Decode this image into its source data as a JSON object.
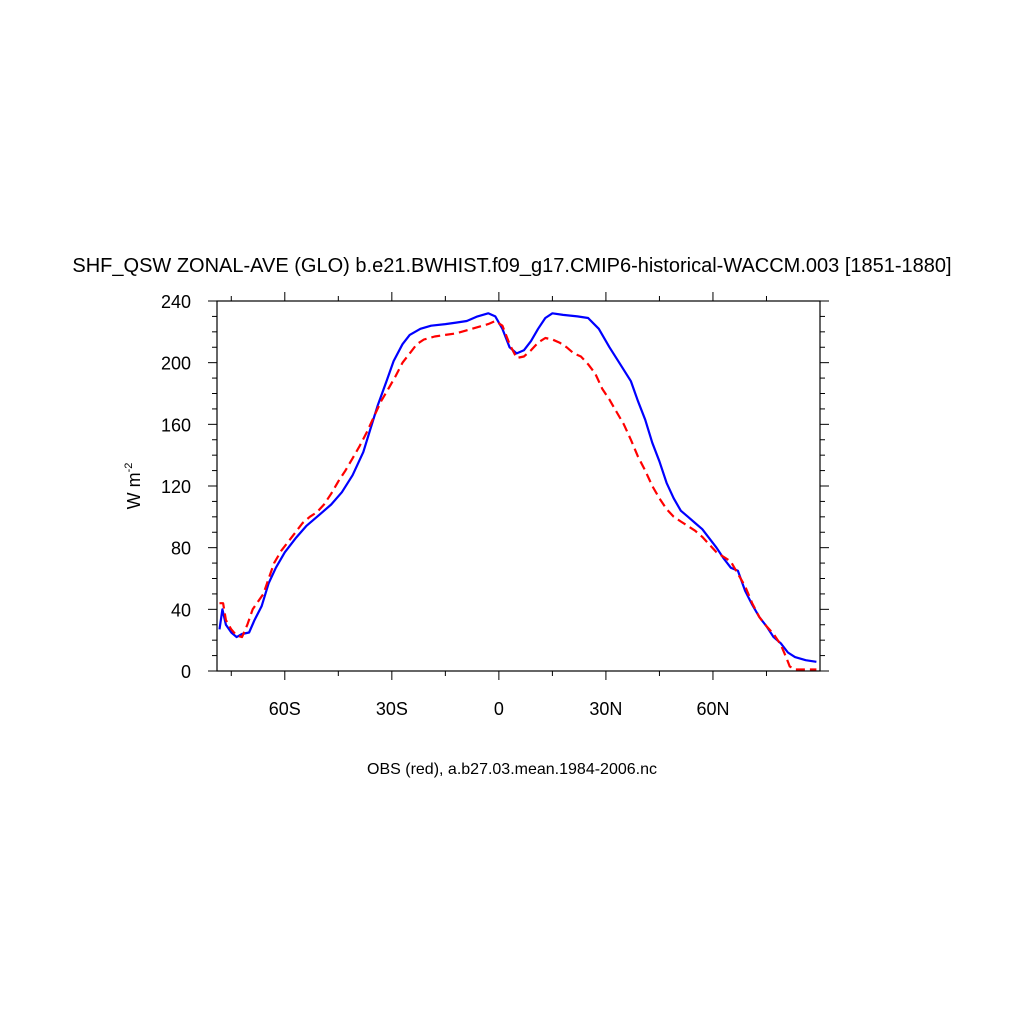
{
  "chart_data": {
    "type": "line",
    "title": "SHF_QSW ZONAL-AVE (GLO) b.e21.BWHIST.f09_g17.CMIP6-historical-WACCM.003 [1851-1880]",
    "ylabel": {
      "base": "W m",
      "exponent": "-2"
    },
    "caption": "OBS (red), a.b27.03.mean.1984-2006.nc",
    "xlim": [
      -79,
      90
    ],
    "ylim": [
      0,
      240
    ],
    "x_ticks": [
      {
        "value": -60,
        "label": "60S"
      },
      {
        "value": -30,
        "label": "30S"
      },
      {
        "value": 0,
        "label": "0"
      },
      {
        "value": 30,
        "label": "30N"
      },
      {
        "value": 60,
        "label": "60N"
      }
    ],
    "y_ticks": [
      {
        "value": 0,
        "label": "0"
      },
      {
        "value": 40,
        "label": "40"
      },
      {
        "value": 80,
        "label": "80"
      },
      {
        "value": 120,
        "label": "120"
      },
      {
        "value": 160,
        "label": "160"
      },
      {
        "value": 200,
        "label": "200"
      },
      {
        "value": 240,
        "label": "240"
      }
    ],
    "series": [
      {
        "color": "#0000ff",
        "dash": "solid",
        "points": [
          [
            -78.3,
            27
          ],
          [
            -77.5,
            40
          ],
          [
            -76.5,
            30
          ],
          [
            -75,
            25
          ],
          [
            -73.5,
            22
          ],
          [
            -72,
            24
          ],
          [
            -70,
            25
          ],
          [
            -68.5,
            33
          ],
          [
            -66.5,
            42
          ],
          [
            -64.5,
            57
          ],
          [
            -62.5,
            67
          ],
          [
            -60,
            77
          ],
          [
            -57,
            86
          ],
          [
            -54,
            94
          ],
          [
            -50,
            102
          ],
          [
            -47,
            108
          ],
          [
            -44,
            116
          ],
          [
            -41,
            127
          ],
          [
            -38,
            142
          ],
          [
            -36,
            157
          ],
          [
            -34,
            172
          ],
          [
            -31.5,
            188
          ],
          [
            -29.5,
            201
          ],
          [
            -27,
            212
          ],
          [
            -25,
            218
          ],
          [
            -22,
            222
          ],
          [
            -19,
            224
          ],
          [
            -15,
            225
          ],
          [
            -12,
            226
          ],
          [
            -9,
            227
          ],
          [
            -6,
            230
          ],
          [
            -3,
            232
          ],
          [
            -1,
            230
          ],
          [
            1,
            222
          ],
          [
            3,
            210
          ],
          [
            5,
            206
          ],
          [
            7,
            208
          ],
          [
            9,
            214
          ],
          [
            11,
            222
          ],
          [
            13,
            229
          ],
          [
            15,
            232
          ],
          [
            18,
            231
          ],
          [
            22,
            230
          ],
          [
            25,
            229
          ],
          [
            28,
            222
          ],
          [
            31,
            210
          ],
          [
            34,
            199
          ],
          [
            37,
            188
          ],
          [
            39,
            175
          ],
          [
            41,
            163
          ],
          [
            43,
            148
          ],
          [
            45,
            136
          ],
          [
            47,
            122
          ],
          [
            49,
            112
          ],
          [
            51,
            104
          ],
          [
            53,
            100
          ],
          [
            55,
            96
          ],
          [
            57,
            92
          ],
          [
            59,
            86
          ],
          [
            61,
            80
          ],
          [
            63,
            73
          ],
          [
            65,
            67
          ],
          [
            67,
            65
          ],
          [
            69,
            52
          ],
          [
            71,
            43
          ],
          [
            73,
            35
          ],
          [
            75,
            29
          ],
          [
            77,
            22
          ],
          [
            79,
            18
          ],
          [
            81,
            12
          ],
          [
            83,
            9
          ],
          [
            86,
            7
          ],
          [
            89,
            6
          ]
        ]
      },
      {
        "color": "#ff0000",
        "dash": "dashed",
        "points": [
          [
            -78.3,
            44
          ],
          [
            -77.3,
            44
          ],
          [
            -76.5,
            33
          ],
          [
            -75,
            27
          ],
          [
            -73.5,
            23
          ],
          [
            -72,
            22
          ],
          [
            -70.5,
            30
          ],
          [
            -69,
            40
          ],
          [
            -67.5,
            45
          ],
          [
            -66,
            50
          ],
          [
            -64.5,
            60
          ],
          [
            -63,
            70
          ],
          [
            -61,
            78
          ],
          [
            -59,
            84
          ],
          [
            -57,
            90
          ],
          [
            -55,
            96
          ],
          [
            -53,
            100
          ],
          [
            -51,
            103
          ],
          [
            -49,
            108
          ],
          [
            -47,
            115
          ],
          [
            -45,
            123
          ],
          [
            -43,
            130
          ],
          [
            -41,
            138
          ],
          [
            -39,
            146
          ],
          [
            -37,
            155
          ],
          [
            -35,
            165
          ],
          [
            -33,
            175
          ],
          [
            -31,
            183
          ],
          [
            -29,
            191
          ],
          [
            -27,
            200
          ],
          [
            -25,
            206
          ],
          [
            -23,
            212
          ],
          [
            -21,
            215
          ],
          [
            -18,
            217
          ],
          [
            -15,
            218
          ],
          [
            -12,
            219
          ],
          [
            -9,
            221
          ],
          [
            -6,
            223
          ],
          [
            -3,
            225
          ],
          [
            -1,
            227
          ],
          [
            1,
            224
          ],
          [
            3,
            212
          ],
          [
            5,
            203
          ],
          [
            7,
            204
          ],
          [
            9,
            208
          ],
          [
            11,
            213
          ],
          [
            13,
            216
          ],
          [
            15,
            215
          ],
          [
            17,
            213
          ],
          [
            19,
            210
          ],
          [
            21,
            206
          ],
          [
            23,
            204
          ],
          [
            25,
            199
          ],
          [
            27,
            193
          ],
          [
            29,
            183
          ],
          [
            31,
            176
          ],
          [
            33,
            168
          ],
          [
            35,
            160
          ],
          [
            37,
            150
          ],
          [
            39,
            139
          ],
          [
            41,
            130
          ],
          [
            43,
            120
          ],
          [
            45,
            112
          ],
          [
            47,
            105
          ],
          [
            49,
            100
          ],
          [
            51,
            97
          ],
          [
            53,
            94
          ],
          [
            55,
            91
          ],
          [
            57,
            87
          ],
          [
            59,
            82
          ],
          [
            61,
            77
          ],
          [
            63,
            74
          ],
          [
            65,
            71
          ],
          [
            67,
            63
          ],
          [
            69,
            55
          ],
          [
            71,
            44
          ],
          [
            73,
            35
          ],
          [
            75,
            29
          ],
          [
            77,
            24
          ],
          [
            79,
            17
          ],
          [
            80.5,
            9
          ],
          [
            81.5,
            3
          ],
          [
            83,
            1
          ],
          [
            86,
            1
          ],
          [
            89,
            1
          ]
        ]
      }
    ]
  }
}
